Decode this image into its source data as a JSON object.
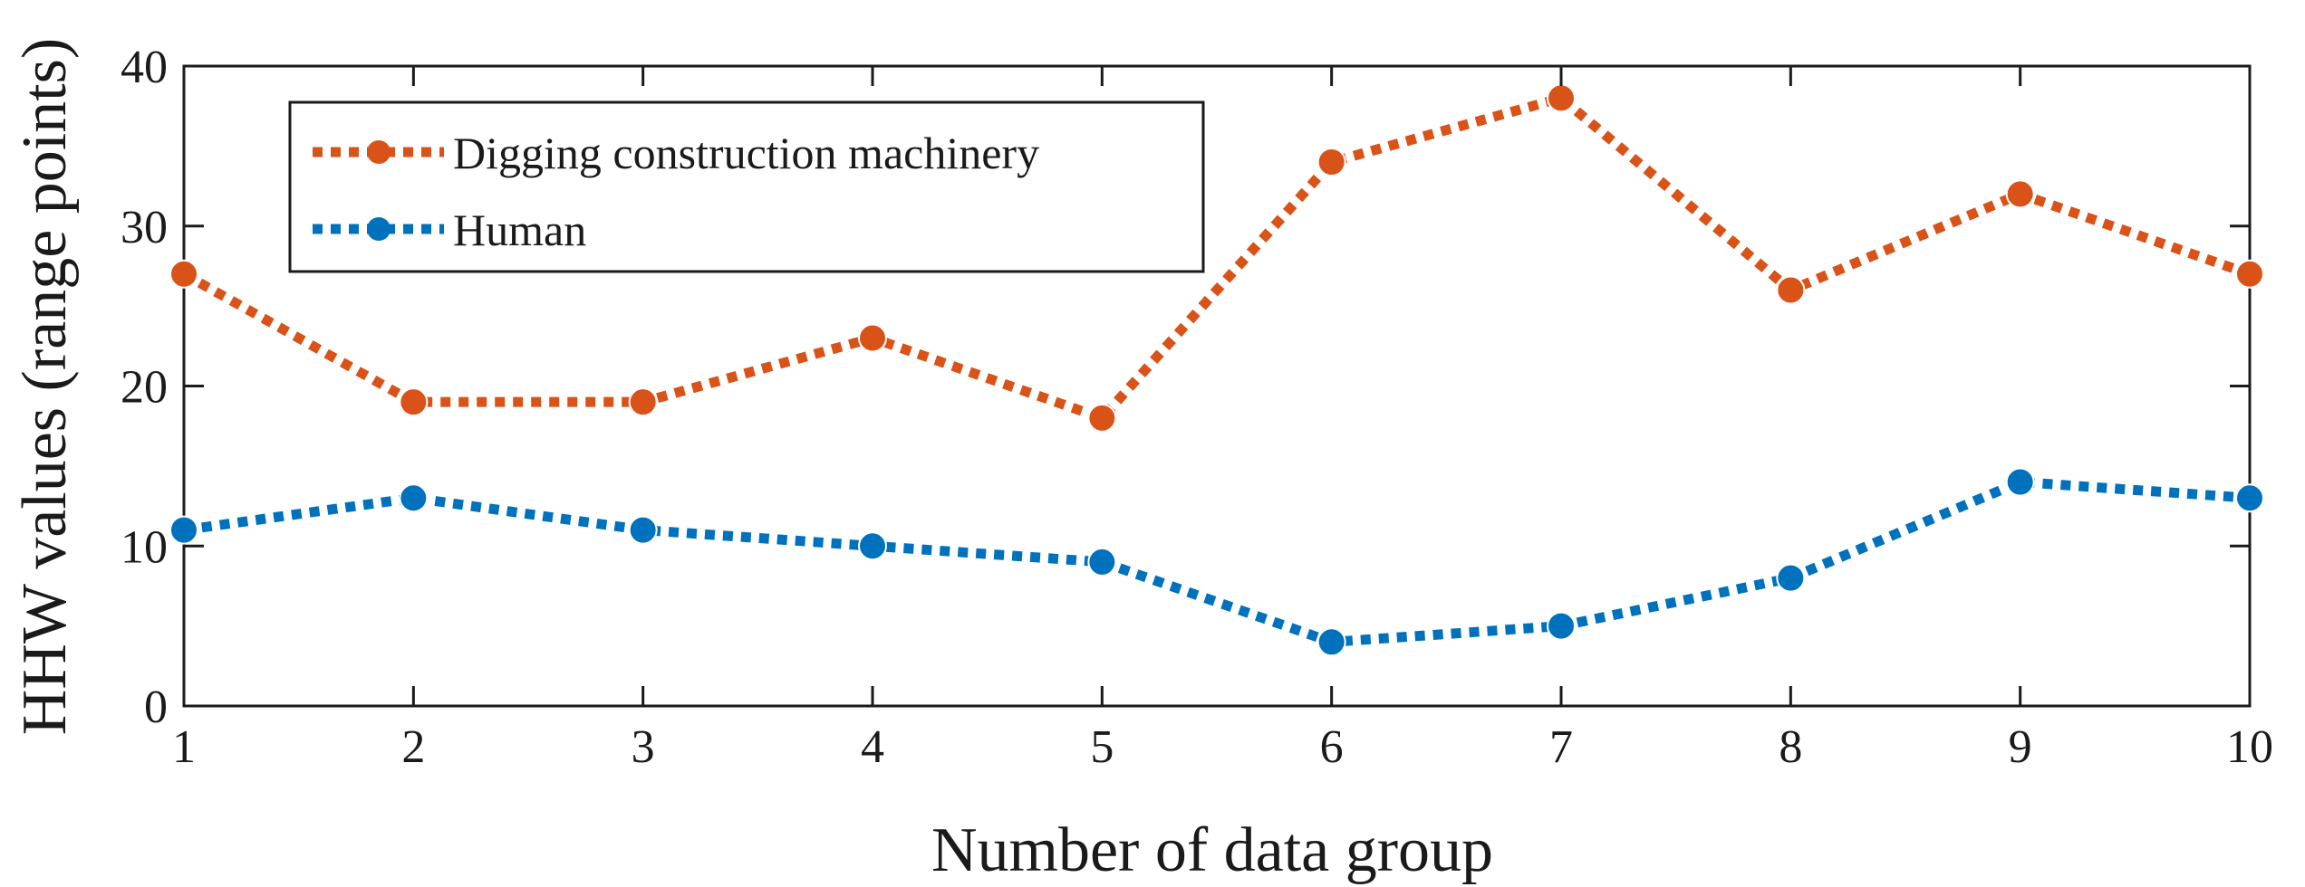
{
  "chart_data": {
    "type": "line",
    "title": "",
    "xlabel": "Number of data group",
    "ylabel": "HHW values (range points)",
    "x": [
      1,
      2,
      3,
      4,
      5,
      6,
      7,
      8,
      9,
      10
    ],
    "x_tick_labels": [
      "1",
      "2",
      "3",
      "4",
      "5",
      "6",
      "7",
      "8",
      "9",
      "10"
    ],
    "y_ticks": [
      0,
      10,
      20,
      30,
      40
    ],
    "y_tick_labels": [
      "0",
      "10",
      "20",
      "30",
      "40"
    ],
    "xlim": [
      1,
      10
    ],
    "ylim": [
      0,
      40
    ],
    "grid": false,
    "legend_position": "top-left",
    "series": [
      {
        "name": "Digging construction machinery",
        "color": "#D95319",
        "line_style": "dotted",
        "marker": "circle",
        "values": [
          27,
          19,
          19,
          23,
          18,
          34,
          38,
          26,
          32,
          27
        ]
      },
      {
        "name": "Human",
        "color": "#0072BD",
        "line_style": "dotted",
        "marker": "circle",
        "values": [
          11,
          13,
          11,
          10,
          9,
          4,
          5,
          8,
          14,
          13
        ]
      }
    ]
  }
}
